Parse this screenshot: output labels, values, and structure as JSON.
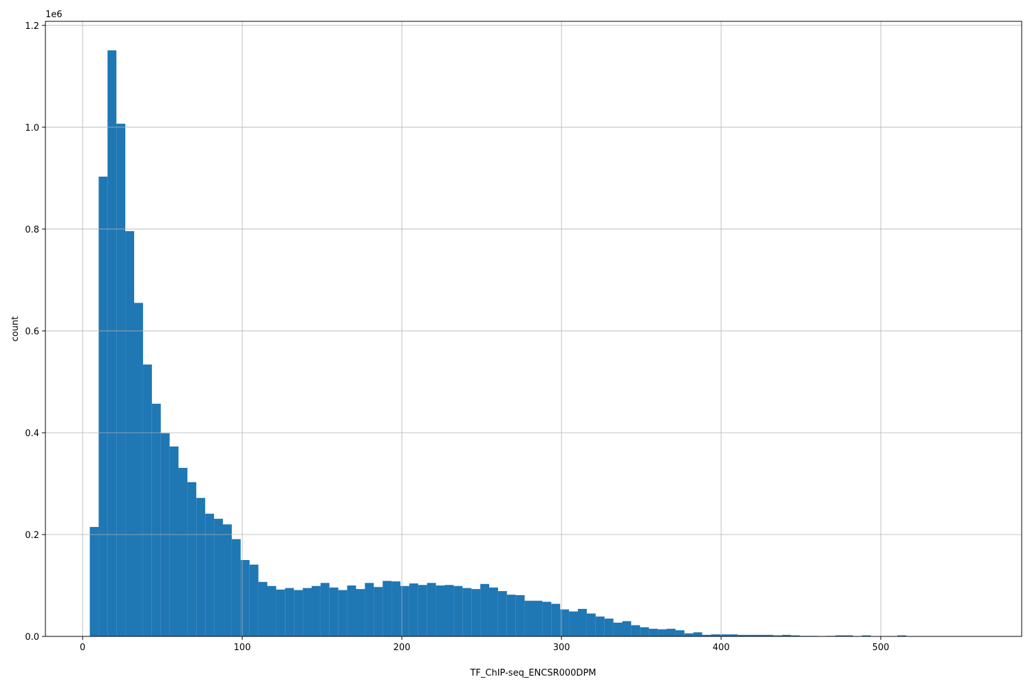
{
  "chart_data": {
    "type": "histogram",
    "xlabel": "TF_ChIP-seq_ENCSR000DPM",
    "ylabel": "count",
    "y_offset_label": "1e6",
    "color": "#1f77b4",
    "grid": true,
    "bins": [
      4.5,
      10.06,
      15.62,
      21.18,
      26.74,
      32.3,
      37.86,
      43.42,
      48.98,
      54.54,
      60.1,
      65.66,
      71.22,
      76.78,
      82.34,
      87.9,
      93.46,
      99.02,
      104.58,
      110.14,
      115.7,
      121.26,
      126.82,
      132.38,
      137.94,
      143.5,
      149.06,
      154.62,
      160.18,
      165.74,
      171.3,
      176.86,
      182.42,
      187.98,
      193.54,
      199.1,
      204.66,
      210.22,
      215.78,
      221.34,
      226.9,
      232.46,
      238.02,
      243.58,
      249.14,
      254.7,
      260.26,
      265.82,
      271.38,
      276.94,
      282.5,
      288.06,
      293.62,
      299.18,
      304.74,
      310.3,
      315.86,
      321.42,
      326.98,
      332.54,
      338.1,
      343.66,
      349.22,
      354.78,
      360.34,
      365.9,
      371.46,
      377.02,
      382.58,
      388.14,
      393.7,
      399.26,
      404.82,
      410.38,
      415.94,
      421.5,
      427.06,
      432.62,
      438.18,
      443.74,
      449.3,
      454.86,
      460.42,
      465.98,
      471.54,
      477.1,
      482.66,
      488.22,
      493.78,
      499.34,
      504.9,
      510.46,
      516.02,
      521.58,
      527.14,
      532.7,
      538.26,
      543.82,
      549.38,
      554.94,
      560.5
    ],
    "counts": [
      215000,
      903000,
      1151000,
      1007000,
      796000,
      655000,
      534000,
      457000,
      399000,
      373000,
      331000,
      303000,
      272000,
      241000,
      231000,
      220000,
      191000,
      150000,
      141000,
      107000,
      99000,
      92000,
      95000,
      91000,
      95000,
      99000,
      105000,
      96000,
      91000,
      100000,
      93000,
      105000,
      97000,
      109000,
      108000,
      99000,
      104000,
      101000,
      105000,
      100000,
      101000,
      99000,
      95000,
      93000,
      103000,
      96000,
      89000,
      82000,
      81000,
      70000,
      70000,
      68000,
      64000,
      53000,
      49000,
      54000,
      45000,
      39000,
      35000,
      27000,
      30000,
      22000,
      18000,
      15000,
      14000,
      15000,
      12000,
      6000,
      8000,
      3000,
      4000,
      4000,
      4000,
      3000,
      3000,
      3000,
      3000,
      2000,
      3000,
      2000,
      1000,
      1000,
      500,
      1000,
      2000,
      2000,
      500,
      2000,
      500,
      500,
      500,
      2000,
      500,
      300,
      200,
      100,
      200,
      100,
      100,
      100
    ],
    "xlim": [
      -23.3,
      588.3
    ],
    "xticks": [
      0,
      100,
      200,
      300,
      400,
      500
    ],
    "ylim": [
      0,
      1208000
    ],
    "yticks": [
      {
        "value": 0,
        "label": "0.0"
      },
      {
        "value": 200000,
        "label": "0.2"
      },
      {
        "value": 400000,
        "label": "0.4"
      },
      {
        "value": 600000,
        "label": "0.6"
      },
      {
        "value": 800000,
        "label": "0.8"
      },
      {
        "value": 1000000,
        "label": "1.0"
      },
      {
        "value": 1200000,
        "label": "1.2"
      }
    ]
  }
}
